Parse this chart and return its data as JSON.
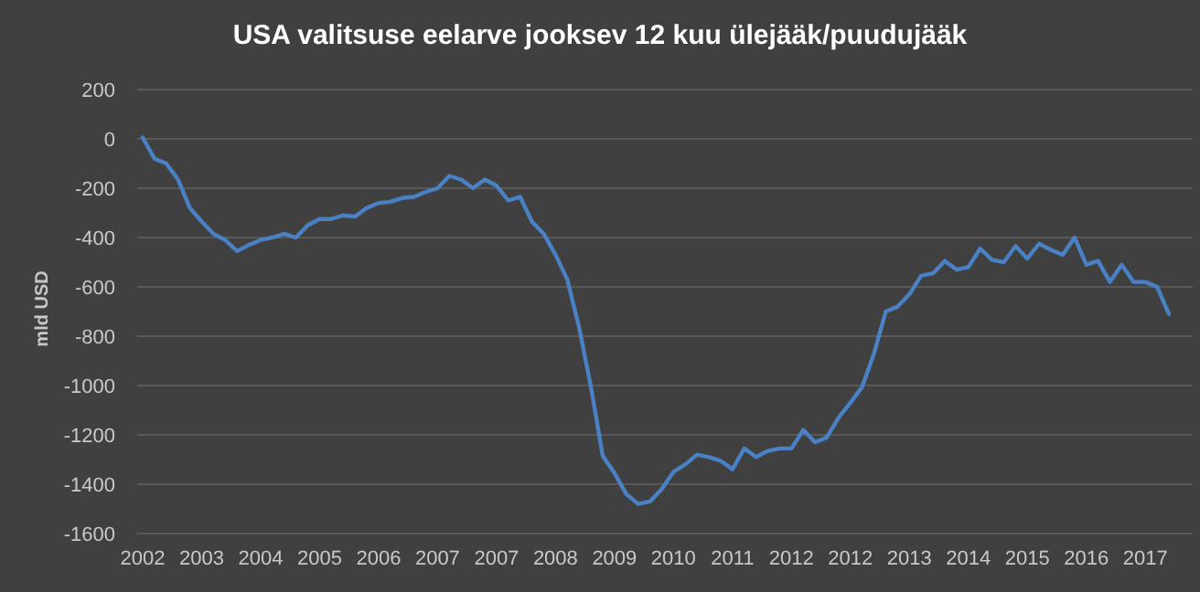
{
  "chart_data": {
    "type": "line",
    "title": "USA valitsuse eelarve jooksev 12 kuu ülejääk/puudujääk",
    "ylabel": "mld USD",
    "categories": [
      "2002",
      null,
      null,
      null,
      null,
      "2003",
      null,
      null,
      null,
      null,
      "2004",
      null,
      null,
      null,
      null,
      "2005",
      null,
      null,
      null,
      null,
      "2006",
      null,
      null,
      null,
      null,
      "2007",
      null,
      null,
      null,
      null,
      "2007",
      null,
      null,
      null,
      null,
      "2008",
      null,
      null,
      null,
      null,
      "2009",
      null,
      null,
      null,
      null,
      "2010",
      null,
      null,
      null,
      null,
      "2011",
      null,
      null,
      null,
      null,
      "2012",
      null,
      null,
      null,
      null,
      "2012",
      null,
      null,
      null,
      null,
      "2013",
      null,
      null,
      null,
      null,
      "2014",
      null,
      null,
      null,
      null,
      "2015",
      null,
      null,
      null,
      null,
      "2016",
      null,
      null,
      null,
      null,
      "2017",
      null,
      null
    ],
    "series": [
      {
        "color": "#4a80c4",
        "values": [
          5,
          -80,
          -100,
          -165,
          -280,
          -335,
          -385,
          -410,
          -455,
          -430,
          -410,
          -400,
          -385,
          -400,
          -350,
          -325,
          -325,
          -310,
          -315,
          -280,
          -260,
          -255,
          -240,
          -235,
          -215,
          -200,
          -150,
          -165,
          -200,
          -165,
          -190,
          -250,
          -235,
          -335,
          -385,
          -470,
          -570,
          -765,
          -1005,
          -1285,
          -1355,
          -1440,
          -1480,
          -1470,
          -1420,
          -1350,
          -1320,
          -1280,
          -1290,
          -1305,
          -1340,
          -1255,
          -1290,
          -1265,
          -1255,
          -1255,
          -1180,
          -1230,
          -1210,
          -1130,
          -1070,
          -1005,
          -870,
          -700,
          -680,
          -630,
          -555,
          -545,
          -495,
          -530,
          -520,
          -445,
          -490,
          -500,
          -435,
          -485,
          -425,
          -450,
          -470,
          -400,
          -510,
          -495,
          -580,
          -510,
          -580,
          -580,
          -600,
          -710
        ]
      }
    ],
    "ylim": [
      -1600,
      200
    ],
    "yticks": [
      -1600,
      -1400,
      -1200,
      -1000,
      -800,
      -600,
      -400,
      -200,
      0,
      200
    ],
    "grid": "y",
    "line_style": "solid",
    "marker": "none"
  }
}
